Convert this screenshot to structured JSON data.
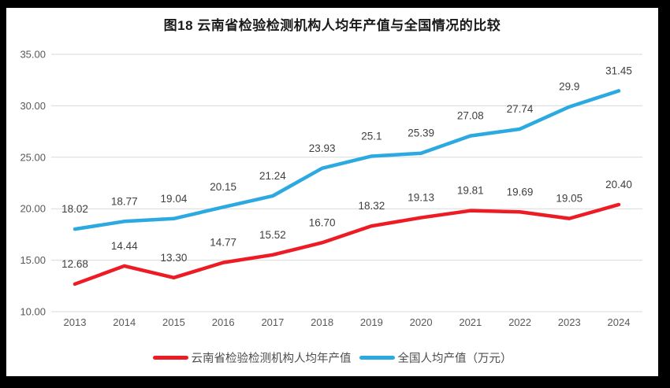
{
  "chart_data": {
    "type": "line",
    "title": "图18 云南省检验检测机构人均年产值与全国情况的比较",
    "categories": [
      "2013",
      "2014",
      "2015",
      "2016",
      "2017",
      "2018",
      "2019",
      "2020",
      "2021",
      "2022",
      "2023",
      "2024"
    ],
    "series": [
      {
        "name": "云南省检验检测机构人均年产值",
        "color": "#ed1c24",
        "values": [
          12.68,
          14.44,
          13.3,
          14.77,
          15.52,
          16.7,
          18.32,
          19.13,
          19.81,
          19.69,
          19.05,
          20.4
        ],
        "labels": [
          "12.68",
          "14.44",
          "13.30",
          "14.77",
          "15.52",
          "16.70",
          "18.32",
          "19.13",
          "19.81",
          "19.69",
          "19.05",
          "20.40"
        ]
      },
      {
        "name": "全国人均产值（万元）",
        "color": "#2ca9e1",
        "values": [
          18.02,
          18.77,
          19.04,
          20.15,
          21.24,
          23.93,
          25.1,
          25.39,
          27.08,
          27.74,
          29.9,
          31.45
        ],
        "labels": [
          "18.02",
          "18.77",
          "19.04",
          "20.15",
          "21.24",
          "23.93",
          "25.1",
          "25.39",
          "27.08",
          "27.74",
          "29.9",
          "31.45"
        ]
      }
    ],
    "ylim": [
      10,
      35
    ],
    "yticks": [
      "10.00",
      "15.00",
      "20.00",
      "25.00",
      "30.00",
      "35.00"
    ],
    "grid": true,
    "gridline_color": "#d9d9d9",
    "legend_position": "bottom"
  }
}
